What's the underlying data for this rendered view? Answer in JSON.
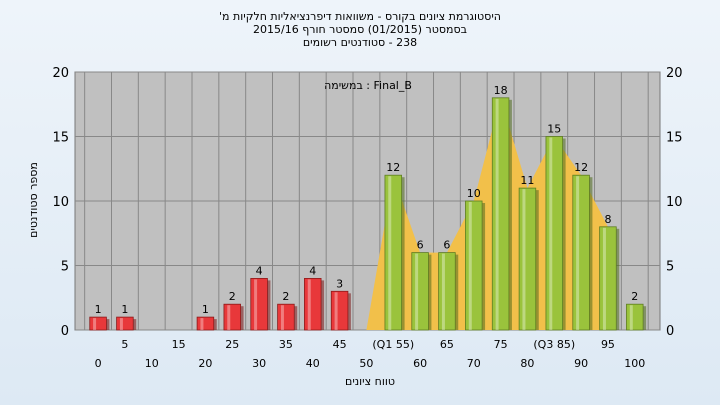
{
  "chart_data": {
    "type": "bar",
    "title_lines": [
      "היסטוגרמת ציונים בקורס - משוואות דיפרנציאליות חלקיות מ'",
      "בסמסטר  (01/2015)  סמסטר חורף 2015/16",
      "238 - סטודנטים רשומים"
    ],
    "xlabel": "טווח ציונים",
    "ylabel": "מספר סטודנטים",
    "annotation": "במשימה : Final_B",
    "ylim": [
      0,
      20
    ],
    "y_ticks": [
      0,
      5,
      10,
      15,
      20
    ],
    "x_ticks_upper": [
      "5",
      "15",
      "25",
      "35",
      "45",
      "(Q1 55)",
      "65",
      "75",
      "(Q3 85)",
      "95"
    ],
    "x_ticks_lower": [
      "0",
      "10",
      "20",
      "30",
      "40",
      "50",
      "60",
      "70",
      "80",
      "90",
      "100"
    ],
    "categories": [
      "0",
      "5",
      "10",
      "15",
      "20",
      "25",
      "30",
      "35",
      "40",
      "45",
      "50",
      "55",
      "60",
      "65",
      "70",
      "75",
      "80",
      "85",
      "90",
      "95",
      "100"
    ],
    "values": [
      1,
      1,
      0,
      0,
      1,
      2,
      4,
      2,
      4,
      3,
      0,
      12,
      6,
      6,
      10,
      18,
      11,
      15,
      12,
      8,
      2
    ],
    "data_labels": [
      "1",
      "1",
      "",
      "",
      "1",
      "2",
      "4",
      "2",
      "4",
      "3",
      "",
      "12",
      "6",
      "6",
      "10",
      "18",
      "11",
      "15",
      "12",
      "8",
      "2"
    ],
    "bar_colors": {
      "below_threshold": "#e8383a",
      "above_threshold": "#9ac33c"
    },
    "threshold_category": "55",
    "grid": true,
    "colors": {
      "plot_background": "#c0c0c0",
      "band_fill": "#f2c04a"
    }
  }
}
